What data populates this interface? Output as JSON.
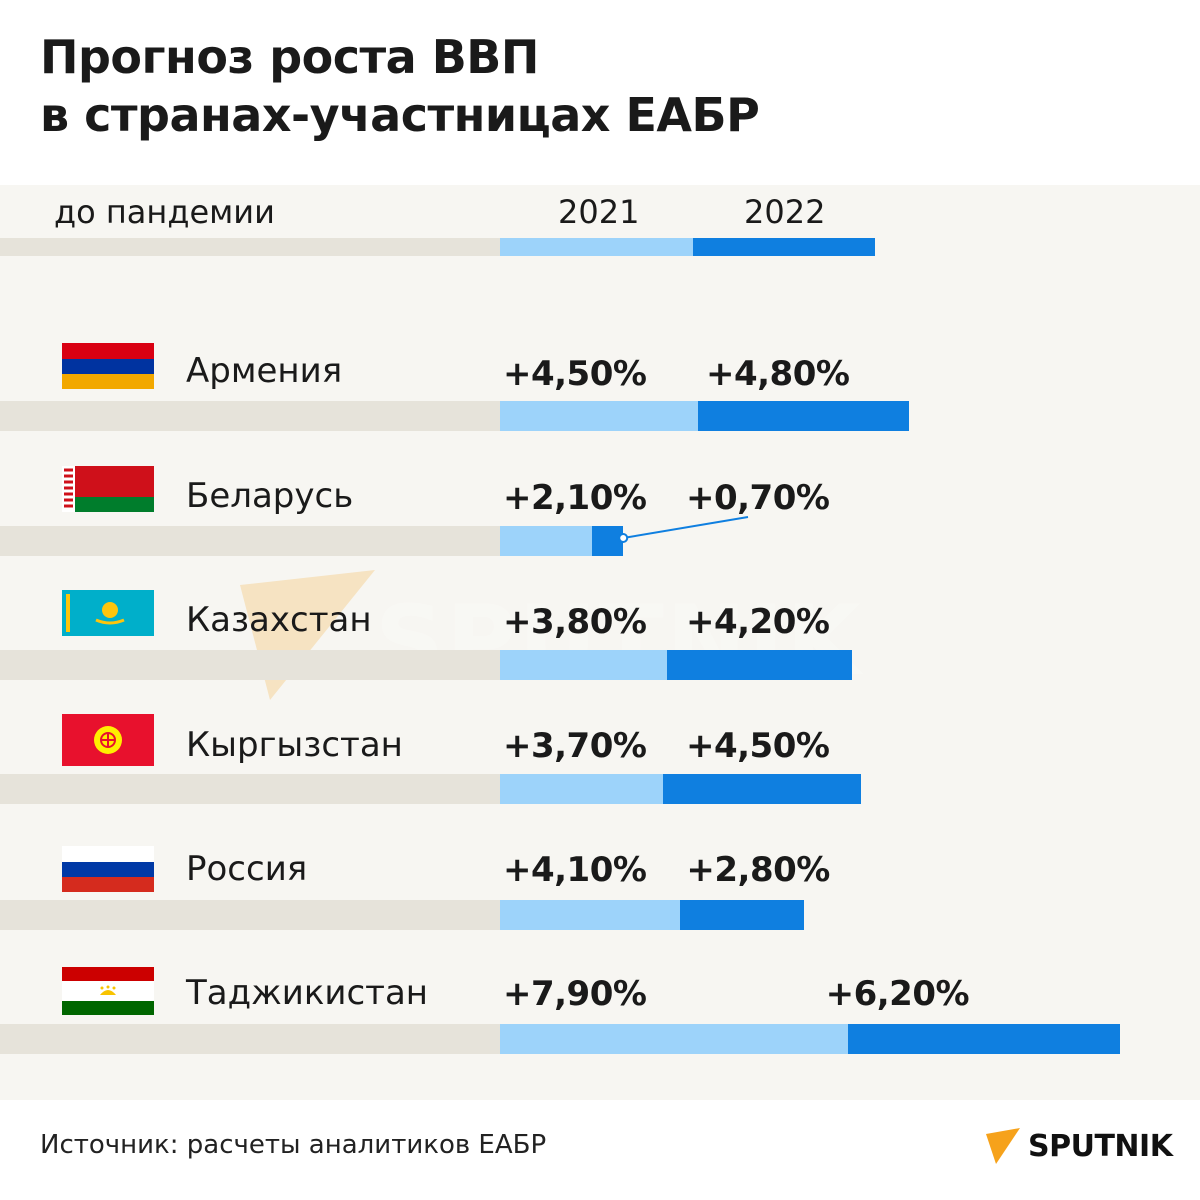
{
  "title": {
    "line1": "Прогноз роста ВВП",
    "line2": "в странах-участницах ЕАБР"
  },
  "legend": {
    "pre_pandemic": "до пандемии",
    "y2021": "2021",
    "y2022": "2022"
  },
  "chart_data": {
    "type": "bar",
    "orientation": "horizontal-stacked",
    "title": "Прогноз роста ВВП в странах-участницах ЕАБР",
    "categories": [
      "Армения",
      "Беларусь",
      "Казахстан",
      "Кыргызстан",
      "Россия",
      "Таджикистан"
    ],
    "series": [
      {
        "name": "2021",
        "values": [
          4.5,
          2.1,
          3.8,
          3.7,
          4.1,
          7.9
        ],
        "labels": [
          "+4,50%",
          "+2,10%",
          "+3,80%",
          "+3,70%",
          "+4,10%",
          "+7,90%"
        ],
        "color": "#9dd3fa"
      },
      {
        "name": "2022",
        "values": [
          4.8,
          0.7,
          4.2,
          4.5,
          2.8,
          6.2
        ],
        "labels": [
          "+4,80%",
          "+0,70%",
          "+4,20%",
          "+4,50%",
          "+2,80%",
          "+6,20%"
        ],
        "color": "#0f7fe0"
      }
    ],
    "baseline_label": "до пандемии",
    "baseline_color": "#e6e3da",
    "flags": [
      "armenia-flag-icon",
      "belarus-flag-icon",
      "kazakhstan-flag-icon",
      "kyrgyzstan-flag-icon",
      "russia-flag-icon",
      "tajikistan-flag-icon"
    ]
  },
  "footer": {
    "source": "Источник: расчеты аналитиков ЕАБР"
  },
  "brand": {
    "name": "SPUTNIK",
    "accent": "#f6a21b"
  },
  "watermark": {
    "text": "SPUTNIK"
  }
}
